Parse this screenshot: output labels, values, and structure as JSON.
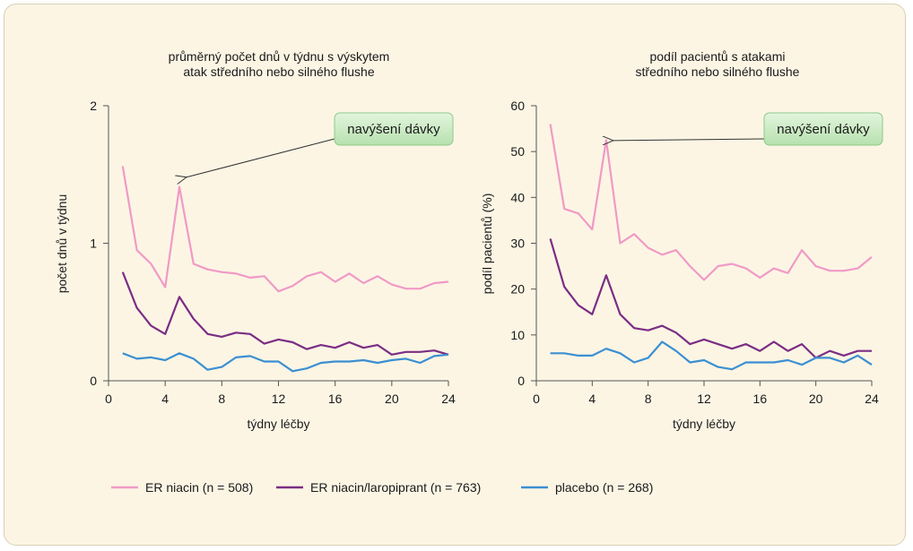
{
  "colors": {
    "background": "#fcf5e4",
    "axis": "#555555",
    "callout_fill": "#c8ebc0",
    "callout_border": "#8fc98a"
  },
  "legend": {
    "items": [
      {
        "label": "ER niacin (n = 508)",
        "color": "#f09ac6"
      },
      {
        "label": "ER niacin/laropiprant (n = 763)",
        "color": "#7b2d84"
      },
      {
        "label": "placebo (n = 268)",
        "color": "#3b8fd1"
      }
    ]
  },
  "chart_data": [
    {
      "type": "line",
      "title": "průměrný počet dnů v týdnu s výskytem\natak středního nebo silného flushe",
      "xlabel": "týdny léčby",
      "ylabel": "počet dnů v týdnu",
      "xlim": [
        0,
        24
      ],
      "ylim": [
        0,
        2
      ],
      "xticks": [
        "0",
        "4",
        "8",
        "12",
        "16",
        "20",
        "24"
      ],
      "yticks": [
        "0",
        "1",
        "2"
      ],
      "grid": false,
      "legend": "bottom",
      "annotation": {
        "label": "navýšení dávky",
        "points_to": [
          5,
          1.5
        ]
      },
      "x": [
        1,
        2,
        3,
        4,
        5,
        6,
        7,
        8,
        9,
        10,
        11,
        12,
        13,
        14,
        15,
        16,
        17,
        18,
        19,
        20,
        21,
        22,
        23,
        24
      ],
      "series": [
        {
          "name": "ER niacin (n = 508)",
          "color": "#f09ac6",
          "values": [
            1.56,
            0.95,
            0.85,
            0.68,
            1.41,
            0.85,
            0.81,
            0.79,
            0.78,
            0.75,
            0.76,
            0.65,
            0.69,
            0.76,
            0.79,
            0.72,
            0.78,
            0.71,
            0.76,
            0.7,
            0.67,
            0.67,
            0.71,
            0.72
          ]
        },
        {
          "name": "ER niacin/laropiprant (n = 763)",
          "color": "#7b2d84",
          "values": [
            0.79,
            0.53,
            0.4,
            0.34,
            0.61,
            0.45,
            0.34,
            0.32,
            0.35,
            0.34,
            0.27,
            0.3,
            0.28,
            0.23,
            0.26,
            0.24,
            0.28,
            0.24,
            0.26,
            0.19,
            0.21,
            0.21,
            0.22,
            0.19
          ]
        },
        {
          "name": "placebo (n = 268)",
          "color": "#3b8fd1",
          "values": [
            0.2,
            0.16,
            0.17,
            0.15,
            0.2,
            0.16,
            0.08,
            0.1,
            0.17,
            0.18,
            0.14,
            0.14,
            0.07,
            0.09,
            0.13,
            0.14,
            0.14,
            0.15,
            0.13,
            0.15,
            0.16,
            0.13,
            0.18,
            0.19
          ]
        }
      ]
    },
    {
      "type": "line",
      "title": "podíl pacientů s atakami\nstředního nebo silného flushe",
      "xlabel": "týdny léčby",
      "ylabel": "podíl pacientů (%)",
      "xlim": [
        0,
        24
      ],
      "ylim": [
        0,
        60
      ],
      "xticks": [
        "0",
        "4",
        "8",
        "12",
        "16",
        "20",
        "24"
      ],
      "yticks": [
        "0",
        "10",
        "20",
        "30",
        "40",
        "50",
        "60"
      ],
      "grid": false,
      "legend": "bottom",
      "annotation": {
        "label": "navýšení dávky",
        "points_to": [
          5,
          53
        ]
      },
      "x": [
        1,
        2,
        3,
        4,
        5,
        6,
        7,
        8,
        9,
        10,
        11,
        12,
        13,
        14,
        15,
        16,
        17,
        18,
        19,
        20,
        21,
        22,
        23,
        24
      ],
      "series": [
        {
          "name": "ER niacin (n = 508)",
          "color": "#f09ac6",
          "values": [
            56,
            37.5,
            36.5,
            33,
            52.5,
            30,
            32,
            29,
            27.5,
            28.5,
            25,
            22,
            25,
            25.5,
            24.5,
            22.5,
            24.5,
            23.5,
            28.5,
            25,
            24,
            24,
            24.5,
            27
          ]
        },
        {
          "name": "ER niacin/laropiprant (n = 763)",
          "color": "#7b2d84",
          "values": [
            31,
            20.5,
            16.5,
            14.5,
            23,
            14.5,
            11.5,
            11,
            12,
            10.5,
            8,
            9,
            8,
            7,
            8,
            6.5,
            8.5,
            6.5,
            8,
            5,
            6.5,
            5.5,
            6.5,
            6.5
          ]
        },
        {
          "name": "placebo (n = 268)",
          "color": "#3b8fd1",
          "values": [
            6,
            6,
            5.5,
            5.5,
            7,
            6,
            4,
            5,
            8.5,
            6.5,
            4,
            4.5,
            3,
            2.5,
            4,
            4,
            4,
            4.5,
            3.5,
            5,
            5,
            4,
            5.5,
            3.5
          ]
        }
      ]
    }
  ]
}
